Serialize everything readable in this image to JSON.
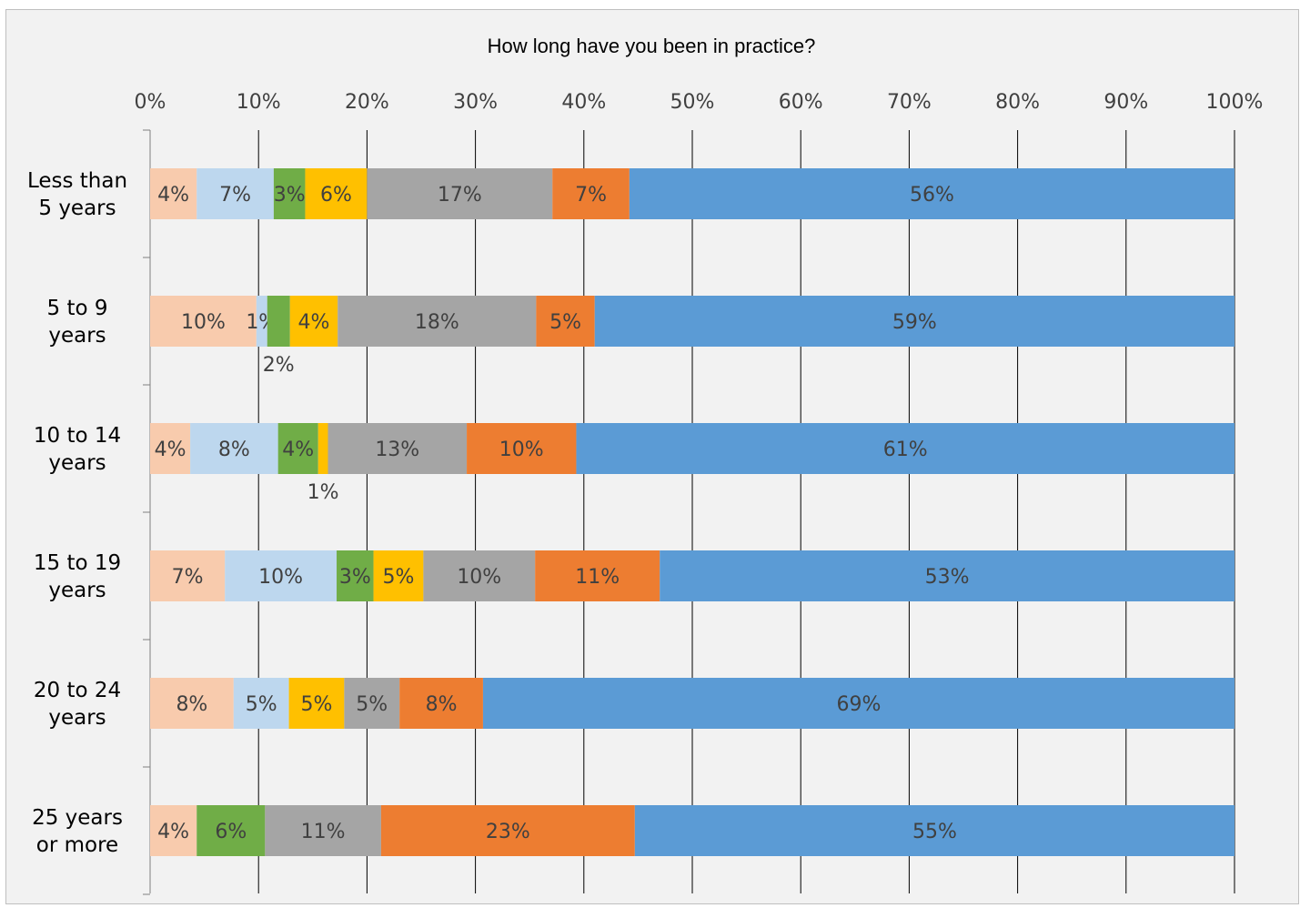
{
  "chart_data": {
    "type": "bar",
    "orientation": "horizontal",
    "stacked": "percent",
    "title": "How long have you been in practice?",
    "x_ticks": [
      "0%",
      "10%",
      "20%",
      "30%",
      "40%",
      "50%",
      "60%",
      "70%",
      "80%",
      "90%",
      "100%"
    ],
    "xlim": [
      0,
      100
    ],
    "x_axis_position": "top",
    "grid": true,
    "legend": "none",
    "categories": [
      "Less than\n5 years",
      "5 to 9\nyears",
      "10 to 14\nyears",
      "15 to 19\nyears",
      "20 to 24\nyears",
      "25 years\nor more"
    ],
    "series": [
      {
        "color": "#f8cbad",
        "values": [
          4.3,
          9.8,
          3.7,
          6.9,
          7.7,
          4.3
        ],
        "labels": [
          "4%",
          "10%",
          "4%",
          "7%",
          "8%",
          "4%"
        ]
      },
      {
        "color": "#bdd7ee",
        "values": [
          7.1,
          1.0,
          8.1,
          10.3,
          5.1,
          0
        ],
        "labels": [
          "7%",
          "1%",
          "8%",
          "10%",
          "5%",
          ""
        ]
      },
      {
        "color": "#70ad47",
        "values": [
          2.9,
          2.1,
          3.7,
          3.4,
          0,
          6.3
        ],
        "labels": [
          "3%",
          "2%",
          "4%",
          "3%",
          "",
          "6%"
        ]
      },
      {
        "color": "#ffc000",
        "values": [
          5.7,
          4.4,
          0.9,
          4.6,
          5.1,
          0
        ],
        "labels": [
          "6%",
          "4%",
          "1%",
          "5%",
          "5%",
          ""
        ]
      },
      {
        "color": "#a5a5a5",
        "values": [
          17.1,
          18.3,
          12.8,
          10.3,
          5.1,
          10.7
        ],
        "labels": [
          "17%",
          "18%",
          "13%",
          "10%",
          "5%",
          "11%"
        ]
      },
      {
        "color": "#ed7d31",
        "values": [
          7.1,
          5.4,
          10.1,
          11.5,
          7.7,
          23.4
        ],
        "labels": [
          "7%",
          "5%",
          "10%",
          "11%",
          "8%",
          "23%"
        ]
      },
      {
        "color": "#5b9bd5",
        "values": [
          55.8,
          59.0,
          60.7,
          53.0,
          69.3,
          55.3
        ],
        "labels": [
          "56%",
          "59%",
          "61%",
          "53%",
          "69%",
          "55%"
        ]
      }
    ],
    "label_below_bar": [
      [],
      [
        2
      ],
      [
        3
      ],
      [],
      [],
      []
    ]
  }
}
